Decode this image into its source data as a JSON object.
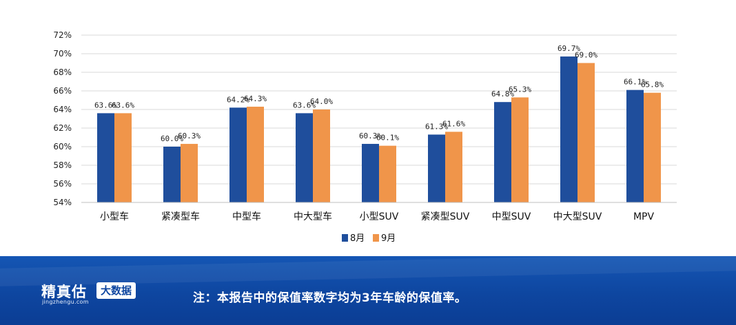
{
  "chart_data": {
    "type": "bar",
    "categories": [
      "小型车",
      "紧凑型车",
      "中型车",
      "中大型车",
      "小型SUV",
      "紧凑型SUV",
      "中型SUV",
      "中大型SUV",
      "MPV"
    ],
    "series": [
      {
        "name": "8月",
        "color": "#1f4e9c",
        "values": [
          63.6,
          60.0,
          64.2,
          63.6,
          60.3,
          61.3,
          64.8,
          69.7,
          66.1
        ],
        "labels": [
          "63.6%",
          "60.0%",
          "64.2%",
          "63.6%",
          "60.3%",
          "61.3%",
          "64.8%",
          "69.7%",
          "66.1%"
        ]
      },
      {
        "name": "9月",
        "color": "#f0954a",
        "values": [
          63.6,
          60.3,
          64.3,
          64.0,
          60.1,
          61.6,
          65.3,
          69.0,
          65.8
        ],
        "labels": [
          "63.6%",
          "60.3%",
          "64.3%",
          "64.0%",
          "60.1%",
          "61.6%",
          "65.3%",
          "69.0%",
          "65.8%"
        ]
      }
    ],
    "ylim": [
      54,
      72
    ],
    "yticks": [
      54,
      56,
      58,
      60,
      62,
      64,
      66,
      68,
      70,
      72
    ],
    "ytick_labels": [
      "54%",
      "56%",
      "58%",
      "60%",
      "62%",
      "64%",
      "66%",
      "68%",
      "70%",
      "72%"
    ],
    "grid": true,
    "legend_position": "bottom-center",
    "title": "",
    "xlabel": "",
    "ylabel": ""
  },
  "footer": {
    "brand": "精真估",
    "brand_url": "jingzhengu.com",
    "badge": "大数据",
    "note": "注：本报告中的保值率数字均为3年车龄的保值率。"
  }
}
